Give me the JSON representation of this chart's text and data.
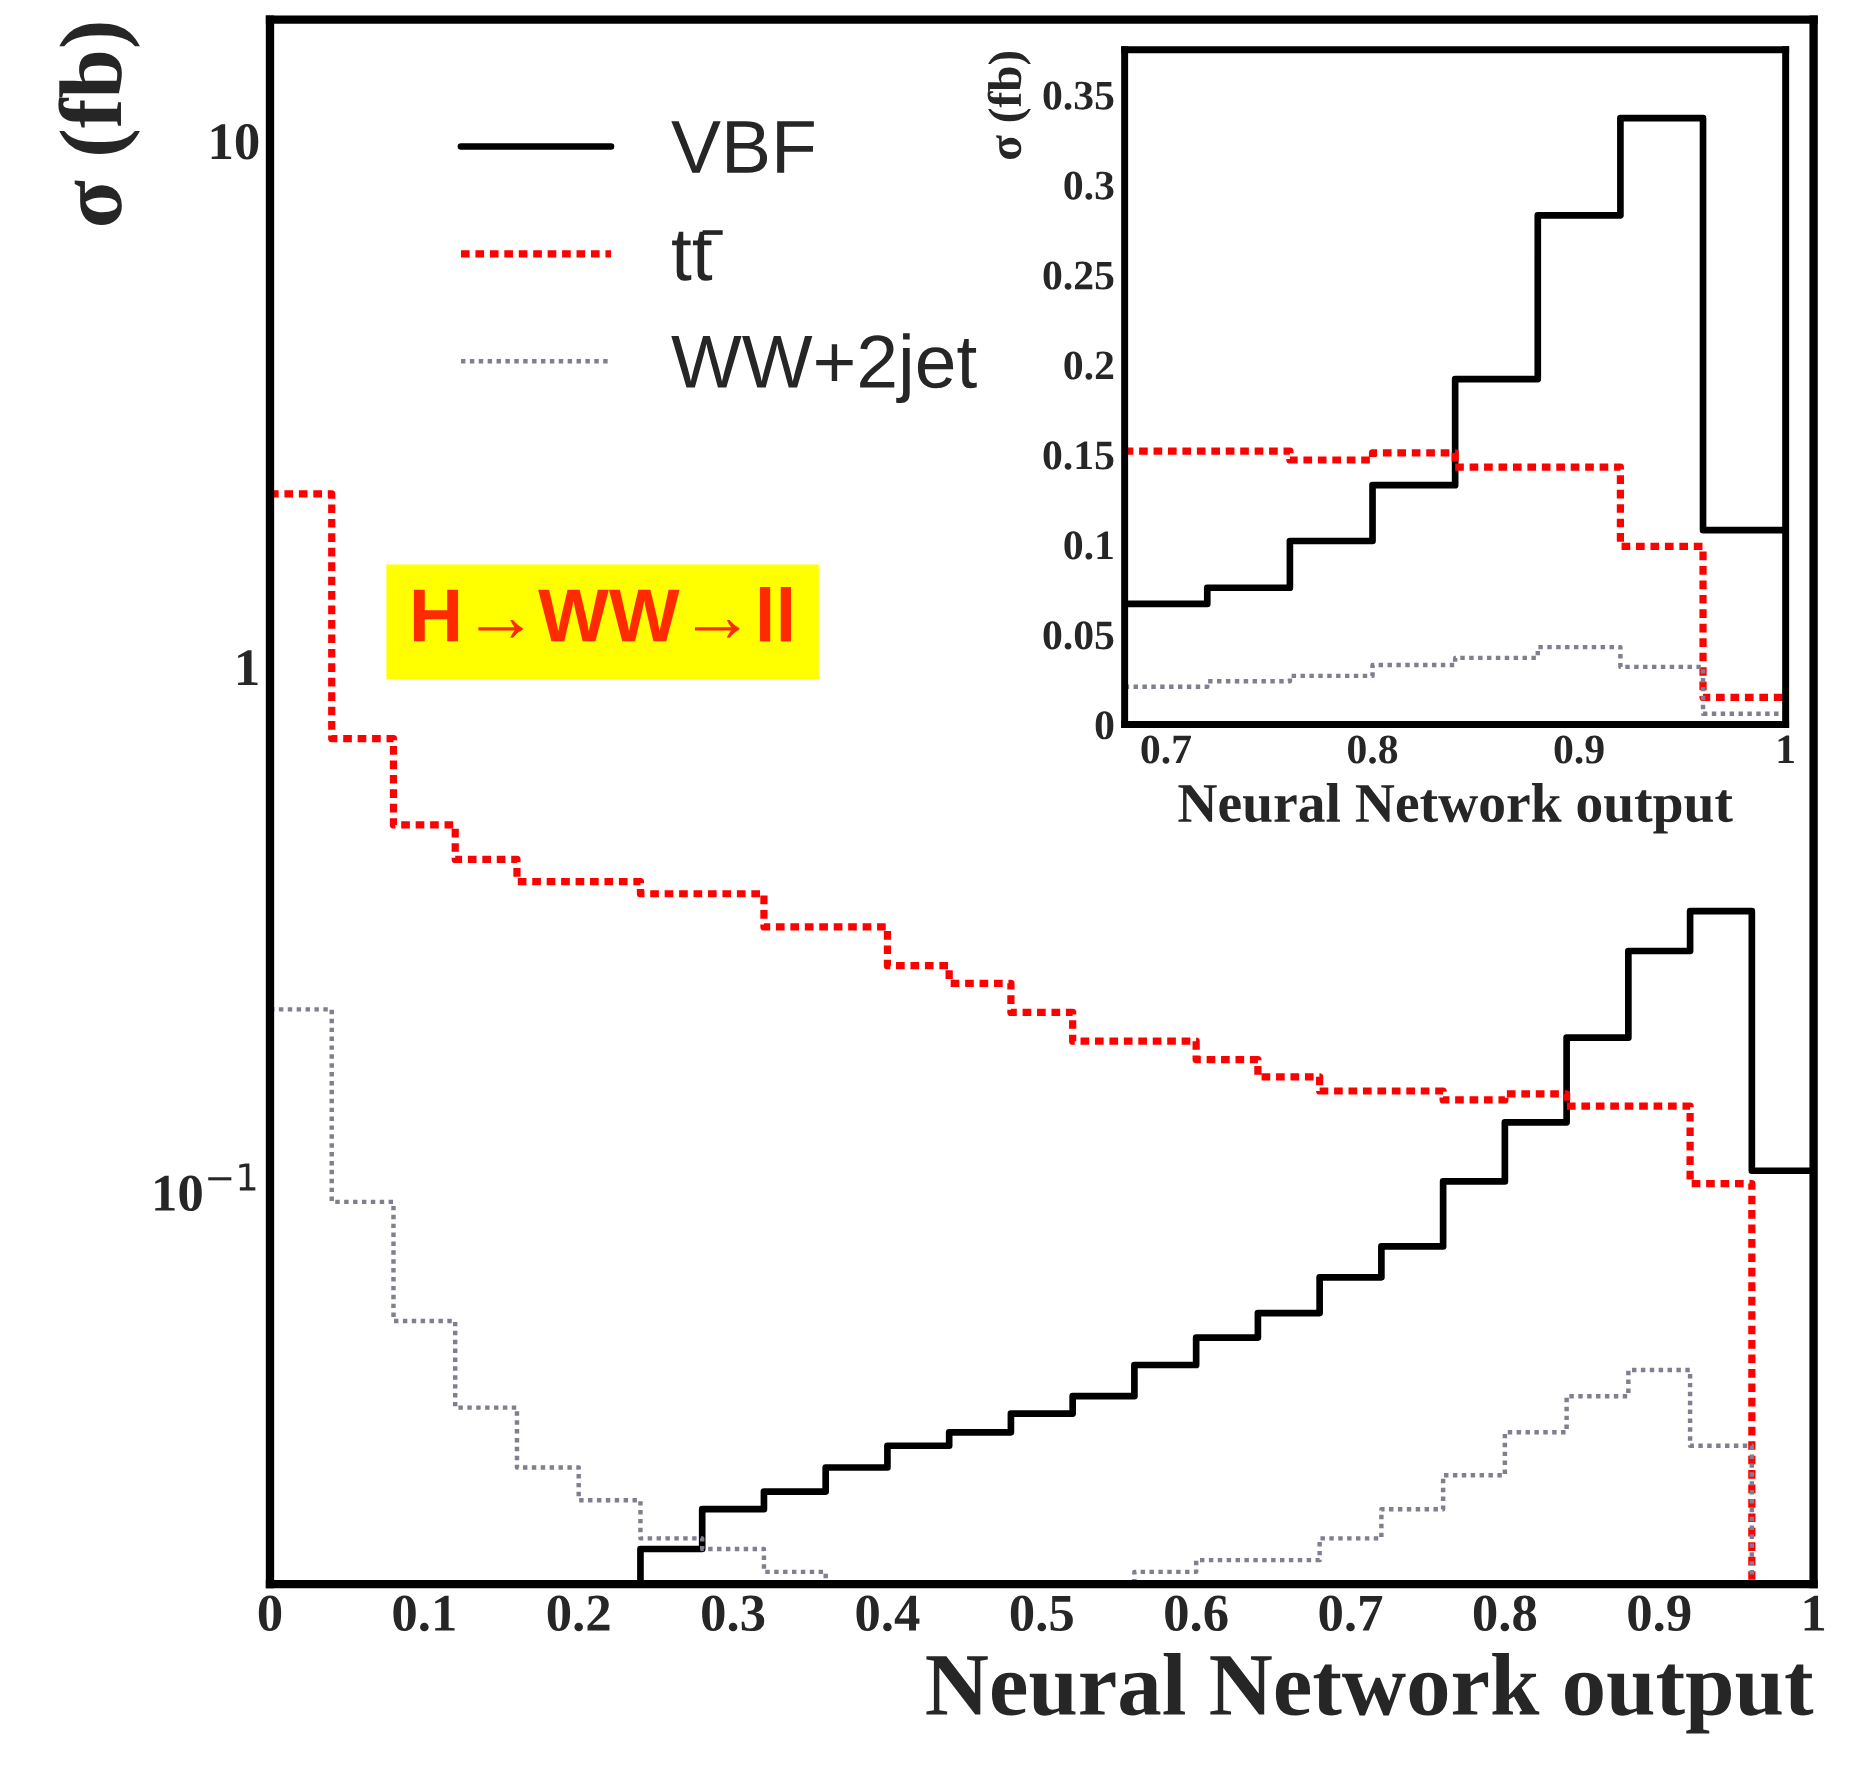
{
  "chart_data": [
    {
      "type": "histogram",
      "xlabel": "Neural Network output",
      "ylabel": "σ (fb)",
      "log": true,
      "legend": "top left",
      "annotations": [
        "H→WW→ll"
      ],
      "bins": [
        0,
        0.04,
        0.08,
        0.12,
        0.16,
        0.2,
        0.24,
        0.28,
        0.32,
        0.36,
        0.4,
        0.44,
        0.48,
        0.52,
        0.56,
        0.6,
        0.64,
        0.68,
        0.72,
        0.76,
        0.8,
        0.84,
        0.88,
        0.92,
        0.96,
        1
      ],
      "series": [
        {
          "name": "VBF",
          "color": "#000000",
          "line_style": "solid",
          "values": [
            null,
            null,
            null,
            null,
            null,
            null,
            0.021,
            0.025,
            0.027,
            0.03,
            0.033,
            0.035,
            0.038,
            0.041,
            0.047,
            0.053,
            0.059,
            0.069,
            0.079,
            0.105,
            0.136,
            0.197,
            0.288,
            0.343,
            0.11
          ]
        },
        {
          "name": "tt̄",
          "color": "#ff0000",
          "line_style": "dashed",
          "values": [
            2.13,
            0.73,
            0.5,
            0.43,
            0.39,
            0.39,
            0.37,
            0.37,
            0.32,
            0.32,
            0.27,
            0.25,
            0.22,
            0.194,
            0.194,
            0.179,
            0.166,
            0.156,
            0.156,
            0.15,
            0.154,
            0.146,
            0.146,
            0.104,
            null
          ]
        },
        {
          "name": "WW+2jet",
          "color": "#7f7f90",
          "line_style": "dotted",
          "values": [
            0.223,
            0.096,
            0.057,
            0.039,
            0.03,
            0.026,
            0.022,
            0.021,
            0.019,
            null,
            null,
            null,
            null,
            null,
            0.019,
            0.02,
            0.02,
            0.022,
            0.025,
            0.029,
            0.035,
            0.041,
            0.046,
            0.033,
            null
          ]
        }
      ],
      "xlim": [
        0,
        1
      ],
      "ylim": [
        0.018,
        17
      ],
      "xticks": [
        0,
        0.1,
        0.2,
        0.3,
        0.4,
        0.5,
        0.6,
        0.7,
        0.8,
        0.9,
        1
      ],
      "yticks": [
        {
          "value": 0.1,
          "label": "10$^{−1}$"
        },
        1,
        10
      ]
    },
    {
      "type": "histogram",
      "xlabel": "Neural Network output",
      "ylabel": "σ (fb)",
      "bins": [
        0.68,
        0.72,
        0.76,
        0.8,
        0.84,
        0.88,
        0.92,
        0.96,
        1
      ],
      "series": [
        {
          "color": "#000000",
          "line_style": "solid",
          "values": [
            0.067,
            0.076,
            0.102,
            0.133,
            0.192,
            0.283,
            0.337,
            0.108
          ]
        },
        {
          "color": "#ff0000",
          "line_style": "dashed",
          "values": [
            0.152,
            0.152,
            0.147,
            0.151,
            0.143,
            0.143,
            0.099,
            0.015
          ]
        },
        {
          "color": "#7f7f90",
          "line_style": "dotted",
          "values": [
            0.021,
            0.024,
            0.027,
            0.033,
            0.037,
            0.043,
            0.032,
            0.006
          ]
        }
      ],
      "xlim": [
        0.68,
        1
      ],
      "ylim": [
        0,
        0.375
      ],
      "xticks": [
        0.7,
        0.8,
        0.9,
        1
      ],
      "yticks": [
        0,
        0.05,
        0.1,
        0.15,
        0.2,
        0.25,
        0.3,
        0.35
      ]
    }
  ]
}
